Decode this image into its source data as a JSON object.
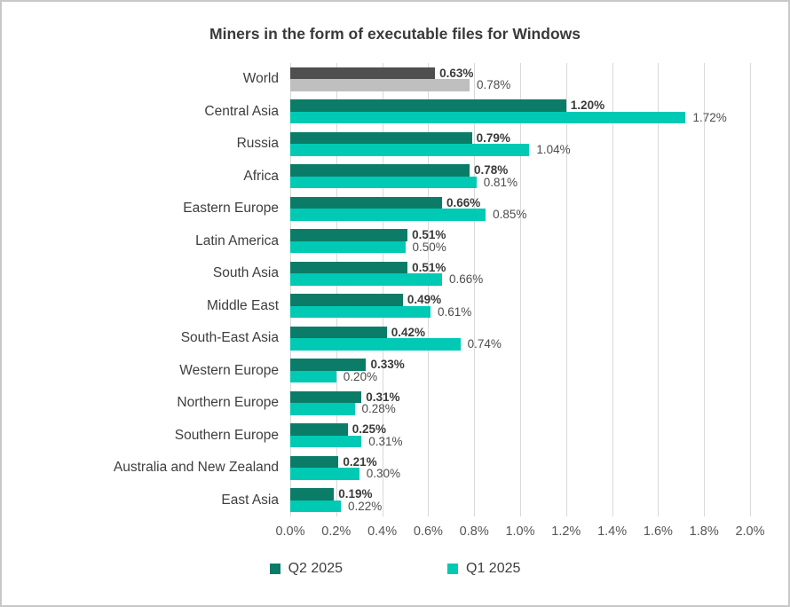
{
  "frame": {
    "border_color": "#c8c8c8",
    "background": "#ffffff",
    "title_color": "#3a3a3a"
  },
  "chart_data": {
    "type": "bar",
    "orientation": "horizontal",
    "title": "Miners in the form of executable files for Windows",
    "categories": [
      "World",
      "Central Asia",
      "Russia",
      "Africa",
      "Eastern Europe",
      "Latin America",
      "South Asia",
      "Middle East",
      "South-East Asia",
      "Western Europe",
      "Northern Europe",
      "Southern Europe",
      "Australia and New Zealand",
      "East Asia"
    ],
    "series": [
      {
        "name": "Q2 2025",
        "color": "#0a7c68",
        "world_color": "#4f4f4f",
        "values": [
          0.63,
          1.2,
          0.79,
          0.78,
          0.66,
          0.51,
          0.51,
          0.49,
          0.42,
          0.33,
          0.31,
          0.25,
          0.21,
          0.19
        ],
        "labels": [
          "0.63%",
          "1.20%",
          "0.79%",
          "0.78%",
          "0.66%",
          "0.51%",
          "0.51%",
          "0.49%",
          "0.42%",
          "0.33%",
          "0.31%",
          "0.25%",
          "0.21%",
          "0.19%"
        ]
      },
      {
        "name": "Q1 2025",
        "color": "#00c9b4",
        "world_color": "#bfbfbf",
        "values": [
          0.78,
          1.72,
          1.04,
          0.81,
          0.85,
          0.5,
          0.66,
          0.61,
          0.74,
          0.2,
          0.28,
          0.31,
          0.3,
          0.22
        ],
        "labels": [
          "0.78%",
          "1.72%",
          "1.04%",
          "0.81%",
          "0.85%",
          "0.50%",
          "0.66%",
          "0.61%",
          "0.74%",
          "0.20%",
          "0.28%",
          "0.31%",
          "0.30%",
          "0.22%"
        ]
      }
    ],
    "xlim": [
      0,
      2.0
    ],
    "x_ticks": [
      "0.0%",
      "0.2%",
      "0.4%",
      "0.6%",
      "0.8%",
      "1.0%",
      "1.2%",
      "1.4%",
      "1.6%",
      "1.8%",
      "2.0%"
    ],
    "grid": "vertical",
    "gridline_color": "#d9d9d9",
    "legend_position": "bottom"
  }
}
